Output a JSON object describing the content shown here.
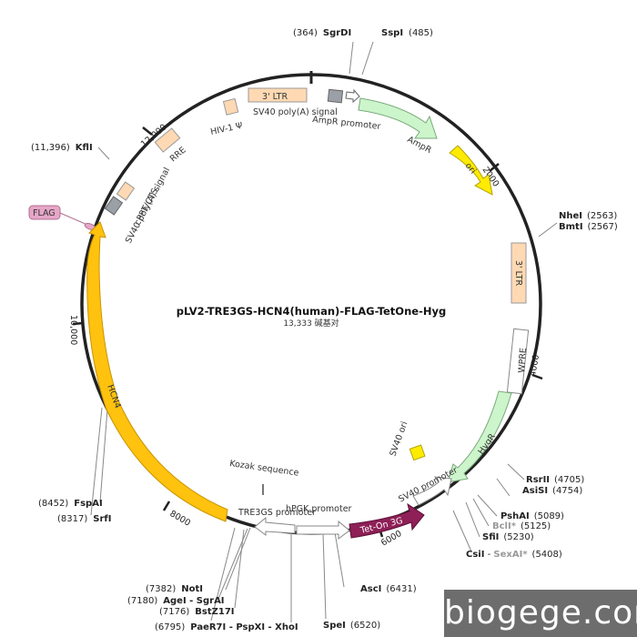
{
  "plasmid": {
    "name": "pLV2-TRE3GS-HCN4(human)-FLAG-TetOne-Hyg",
    "size_label": "13,333 碱基对"
  },
  "ticks": [
    "2000",
    "4000",
    "6000",
    "8000",
    "10,000",
    "12,000"
  ],
  "sites": {
    "sgrdi": {
      "pos": "(364)",
      "name": "SgrDI"
    },
    "sspi": {
      "pos": "(485)",
      "name": "SspI"
    },
    "nhei": {
      "name": "NheI",
      "pos": "(2563)"
    },
    "bmti": {
      "name": "BmtI",
      "pos": "(2567)"
    },
    "rsrii": {
      "name": "RsrII",
      "pos": "(4705)"
    },
    "asisi": {
      "name": "AsiSI",
      "pos": "(4754)"
    },
    "pshai": {
      "name": "PshAI",
      "pos": "(5089)"
    },
    "bcli": {
      "name": "BclI*",
      "pos": "(5125)"
    },
    "sfii": {
      "name": "SfiI",
      "pos": "(5230)"
    },
    "csii": {
      "name": "CsiI",
      "sep": " - ",
      "name2": "SexAI*",
      "pos": "(5408)"
    },
    "asci": {
      "name": "AscI",
      "pos": "(6431)"
    },
    "spei": {
      "name": "SpeI",
      "pos": "(6520)"
    },
    "noti": {
      "pos": "(7382)",
      "name": "NotI"
    },
    "agei": {
      "pos": "(7180)",
      "name": "AgeI - SgrAI"
    },
    "bstz17i": {
      "pos": "(7176)",
      "name": "BstZ17I"
    },
    "paer7i": {
      "pos": "(6795)",
      "name": "PaeR7I - PspXI - XhoI"
    },
    "fspai": {
      "pos": "(8452)",
      "name": "FspAI"
    },
    "srfi": {
      "pos": "(8317)",
      "name": "SrfI"
    },
    "kfli": {
      "pos": "(11,396)",
      "name": "KflI"
    }
  },
  "features": {
    "ltr3_top": "3' LTR",
    "hiv_psi": "HIV-1 Ψ",
    "sv40_polya_top": "SV40 poly(A) signal",
    "ampr_promoter": "AmpR promoter",
    "ampr": "AmpR",
    "ori": "ori",
    "rre": "RRE",
    "cppt": "cPPT/CTS",
    "sv40_polya_left": "SV40 poly(A) signal",
    "flag": "FLAG",
    "ltr3_right": "3' LTR",
    "wpre": "WPRE",
    "hygr": "HygR",
    "sv40_ori": "SV40 ori",
    "sv40_promoter": "SV40 promoter",
    "teton": "Tet-On 3G",
    "hpgk": "hPGK promoter",
    "tre3gs": "TRE3GS promoter",
    "kozak": "Kozak sequence",
    "hcn4": "HCN4"
  },
  "colors": {
    "backbone": "#222222",
    "hcn4": "#ffc20e",
    "ori": "#ffeb00",
    "ampr": "#ccf5cc",
    "teton": "#8e2057",
    "ltr": "#ffd9b3",
    "grey_box": "#9aa0a6",
    "flag": "#e6a6c7"
  },
  "watermark": "biogege.com"
}
